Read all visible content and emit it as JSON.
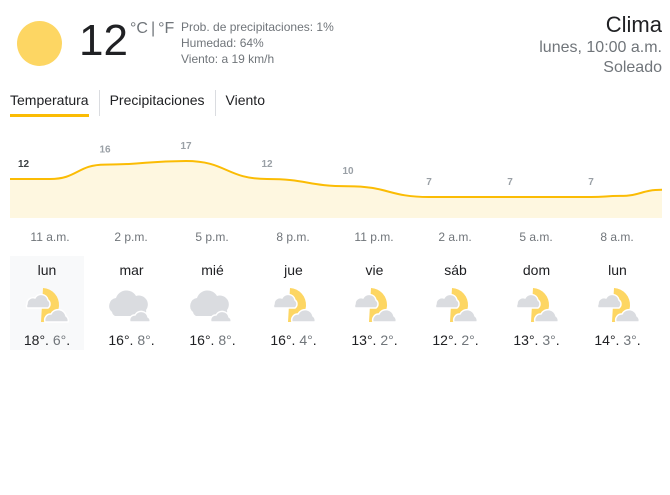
{
  "current": {
    "temperature": "12",
    "unit_c": "°C",
    "unit_sep": "|",
    "unit_f": "°F",
    "icon": "sun-icon",
    "precipitation": "Prob. de precipitaciones: 1%",
    "humidity": "Humedad: 64%",
    "wind": "Viento: a 19 km/h"
  },
  "header": {
    "title": "Clima",
    "datetime": "lunes, 10:00 a.m.",
    "condition": "Soleado"
  },
  "tabs": [
    {
      "label": "Temperatura",
      "active": true
    },
    {
      "label": "Precipitaciones"
    },
    {
      "label": "Viento"
    }
  ],
  "colors": {
    "accent": "#fbbc04",
    "fill": "#fef7e0",
    "sun": "#fdd663",
    "cloud": "#dadce0"
  },
  "chart_data": {
    "type": "area",
    "x": [
      "11 a.m.",
      "2 p.m.",
      "5 p.m.",
      "8 p.m.",
      "11 p.m.",
      "2 a.m.",
      "5 a.m.",
      "8 a.m."
    ],
    "values": [
      12,
      16,
      17,
      12,
      10,
      7,
      7,
      7
    ],
    "unit": "°C"
  },
  "days": [
    {
      "name": "lun",
      "icon": "partly-cloudy-icon",
      "high": "18°",
      "low": "6°"
    },
    {
      "name": "mar",
      "icon": "cloudy-icon",
      "high": "16°",
      "low": "8°"
    },
    {
      "name": "mié",
      "icon": "cloudy-icon",
      "high": "16°",
      "low": "8°"
    },
    {
      "name": "jue",
      "icon": "partly-cloudy-icon",
      "high": "16°",
      "low": "4°"
    },
    {
      "name": "vie",
      "icon": "partly-cloudy-icon",
      "high": "13°",
      "low": "2°"
    },
    {
      "name": "sáb",
      "icon": "partly-cloudy-icon",
      "high": "12°",
      "low": "2°"
    },
    {
      "name": "dom",
      "icon": "partly-cloudy-icon",
      "high": "13°",
      "low": "3°"
    },
    {
      "name": "lun",
      "icon": "partly-cloudy-icon",
      "high": "14°",
      "low": "3°"
    }
  ]
}
